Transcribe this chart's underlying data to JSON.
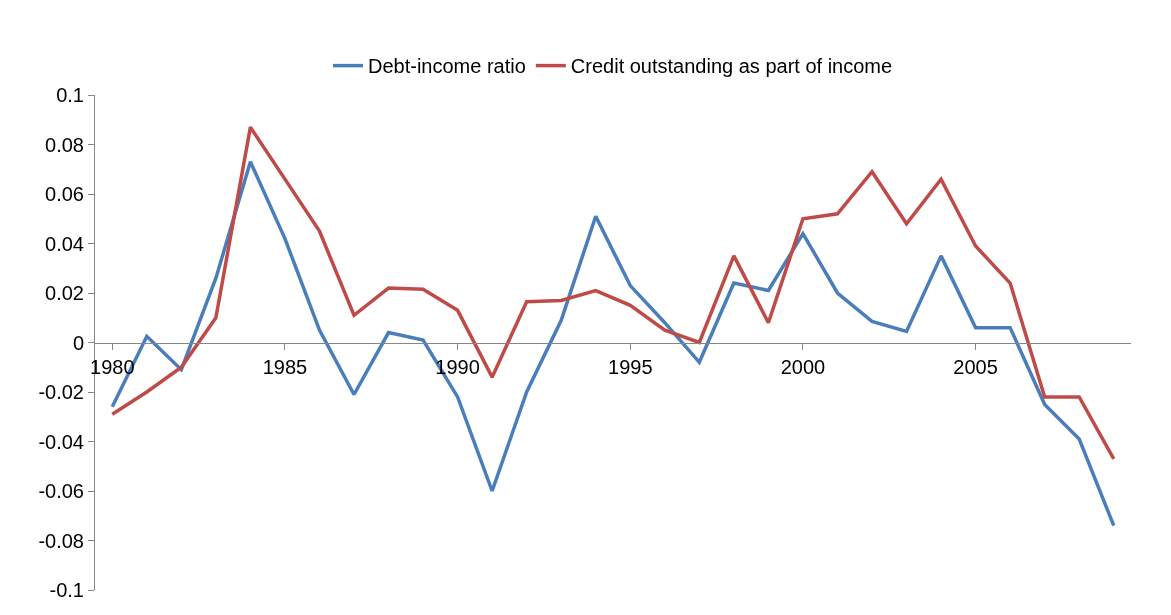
{
  "chart_data": {
    "type": "line",
    "categories": [
      "1980",
      null,
      null,
      null,
      null,
      "1985",
      null,
      null,
      null,
      null,
      "1990",
      null,
      null,
      null,
      null,
      "1995",
      null,
      null,
      null,
      null,
      "2000",
      null,
      null,
      null,
      null,
      "2005",
      null,
      null,
      null,
      null
    ],
    "series": [
      {
        "name": "Debt-income ratio",
        "color": "#4a7ebb",
        "values": [
          -0.026,
          0.0025,
          -0.011,
          0.026,
          0.073,
          0.042,
          0.005,
          -0.021,
          0.004,
          0.001,
          -0.022,
          -0.06,
          -0.02,
          0.009,
          0.051,
          0.023,
          0.008,
          -0.008,
          0.024,
          0.021,
          0.044,
          0.02,
          0.0085,
          0.0045,
          0.035,
          0.006,
          0.006,
          -0.025,
          -0.039,
          -0.074
        ]
      },
      {
        "name": "Credit outstanding as part of income",
        "color": "#be4b48",
        "values": [
          -0.029,
          -0.02,
          -0.01,
          0.01,
          0.087,
          0.066,
          0.045,
          0.011,
          0.022,
          0.0215,
          0.013,
          -0.014,
          0.0165,
          0.017,
          0.021,
          0.015,
          0.005,
          0.0,
          0.035,
          0.008,
          0.05,
          0.052,
          0.069,
          0.048,
          0.066,
          0.039,
          0.024,
          -0.022,
          -0.022,
          -0.047
        ]
      }
    ],
    "ylim": [
      -0.1,
      0.1
    ],
    "yticks": [
      0.1,
      0.08,
      0.06,
      0.04,
      0.02,
      0,
      -0.02,
      -0.04,
      -0.06,
      -0.08,
      -0.1
    ],
    "grid": false,
    "legend": "top",
    "marker": "none",
    "line_style": "solid"
  }
}
